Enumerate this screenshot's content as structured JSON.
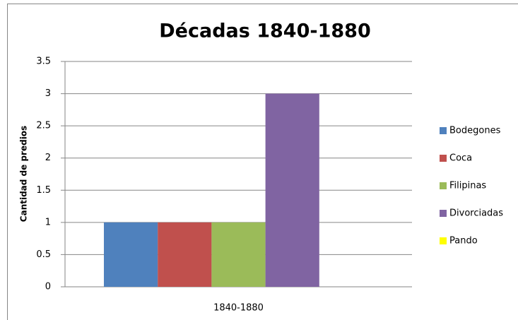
{
  "chart_data": {
    "type": "bar",
    "title": "Décadas 1840-1880",
    "ylabel": "Cantidad de predios",
    "categories": [
      "1840-1880"
    ],
    "series": [
      {
        "name": "Bodegones",
        "color": "#4f81bd",
        "values": [
          1
        ]
      },
      {
        "name": "Coca",
        "color": "#c0504d",
        "values": [
          1
        ]
      },
      {
        "name": "Filipinas",
        "color": "#9bbb59",
        "values": [
          1
        ]
      },
      {
        "name": "Divorciadas",
        "color": "#8064a2",
        "values": [
          3
        ]
      },
      {
        "name": "Pando",
        "color": "#ffff00",
        "values": [
          0
        ]
      }
    ],
    "ylim": [
      0,
      3.5
    ],
    "yticks": [
      0,
      0.5,
      1,
      1.5,
      2,
      2.5,
      3,
      3.5
    ],
    "grid": true,
    "legend": "right"
  }
}
